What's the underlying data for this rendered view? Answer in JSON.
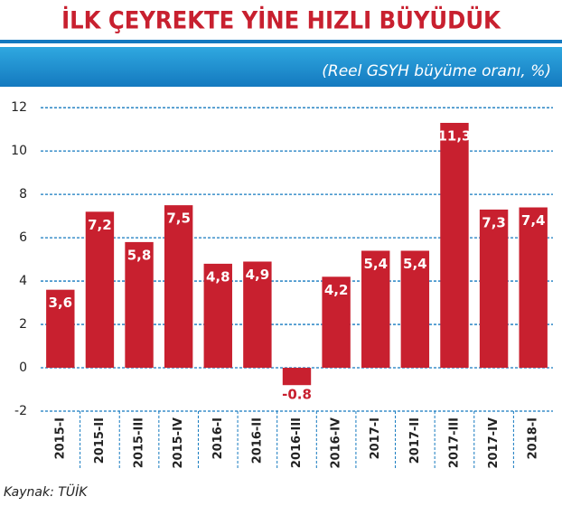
{
  "chart_data": {
    "type": "bar",
    "title": "İLK ÇEYREKTE YİNE HIZLI BÜYÜDÜK",
    "subtitle": "(Reel GSYH büyüme oranı, %)",
    "source": "Kaynak: TÜİK",
    "categories": [
      "2015-I",
      "2015-II",
      "2015-III",
      "2015-IV",
      "2016-I",
      "2016-II",
      "2016-III",
      "2016-IV",
      "2017-I",
      "2017-II",
      "2017-III",
      "2017-IV",
      "2018-I"
    ],
    "values": [
      3.6,
      7.2,
      5.8,
      7.5,
      4.8,
      4.9,
      -0.8,
      4.2,
      5.4,
      5.4,
      11.3,
      7.3,
      7.4
    ],
    "value_labels": [
      "3,6",
      "7,2",
      "5,8",
      "7,5",
      "4,8",
      "4,9",
      "-0.8",
      "4,2",
      "5,4",
      "5,4",
      "11,3",
      "7,3",
      "7,4"
    ],
    "color": "#c8202f",
    "ylim": [
      -2,
      12.8
    ],
    "yticks": [
      -2,
      0,
      2,
      4,
      6,
      8,
      10,
      12
    ],
    "grid": true
  }
}
